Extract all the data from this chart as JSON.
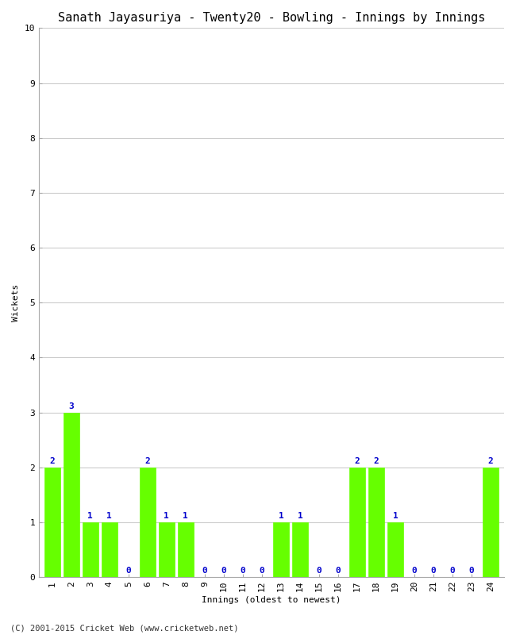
{
  "title": "Sanath Jayasuriya - Twenty20 - Bowling - Innings by Innings",
  "xlabel": "Innings (oldest to newest)",
  "ylabel": "Wickets",
  "innings": [
    1,
    2,
    3,
    4,
    5,
    6,
    7,
    8,
    9,
    10,
    11,
    12,
    13,
    14,
    15,
    16,
    17,
    18,
    19,
    20,
    21,
    22,
    23,
    24
  ],
  "wickets": [
    2,
    3,
    1,
    1,
    0,
    2,
    1,
    1,
    0,
    0,
    0,
    0,
    1,
    1,
    0,
    0,
    2,
    2,
    1,
    0,
    0,
    0,
    0,
    2
  ],
  "bar_color": "#66ff00",
  "bar_edge_color": "#66ff00",
  "label_color": "#0000cc",
  "ylim": [
    0,
    10
  ],
  "yticks": [
    0,
    1,
    2,
    3,
    4,
    5,
    6,
    7,
    8,
    9,
    10
  ],
  "background_color": "#ffffff",
  "plot_bg_color": "#ffffff",
  "title_fontsize": 11,
  "axis_label_fontsize": 8,
  "tick_fontsize": 8,
  "label_fontsize": 8,
  "footer": "(C) 2001-2015 Cricket Web (www.cricketweb.net)"
}
